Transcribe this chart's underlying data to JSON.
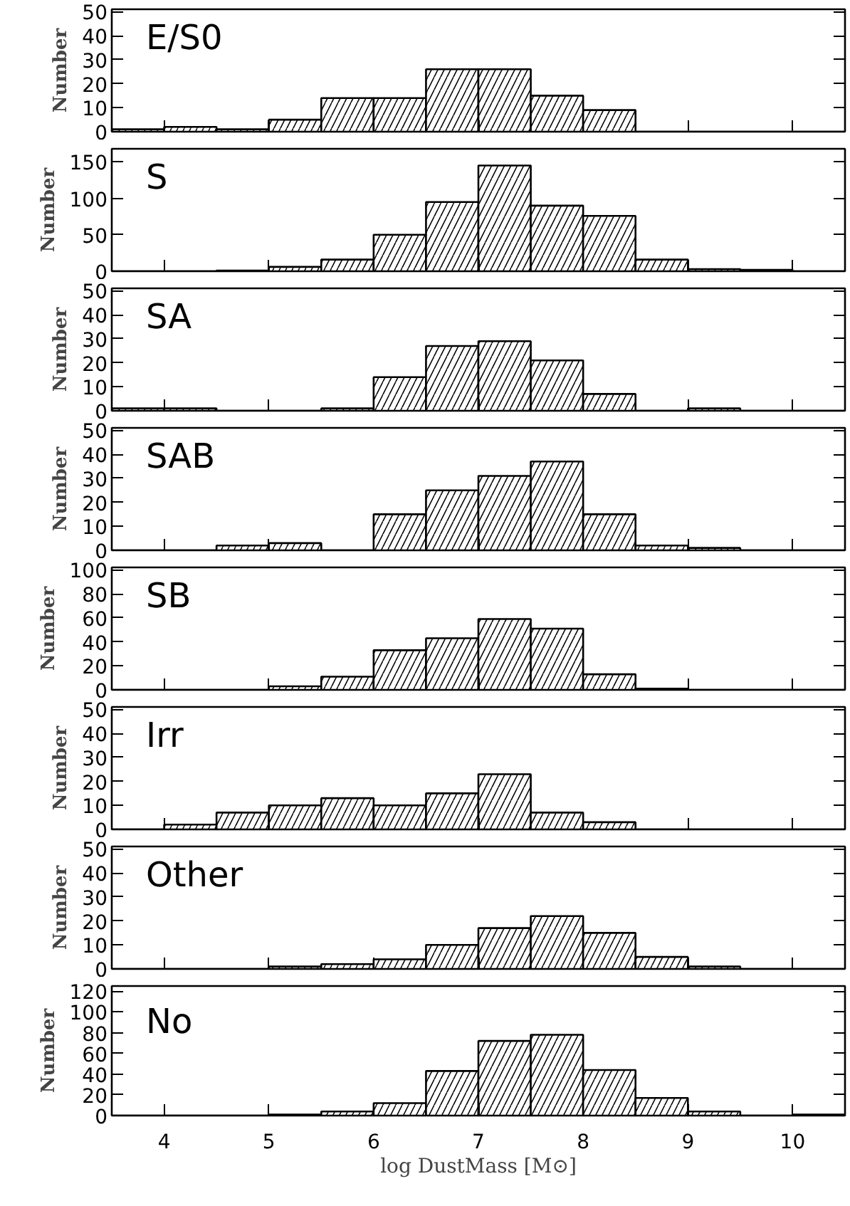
{
  "chart_data": [
    {
      "type": "histogram",
      "title": "E/S0",
      "ylabel": "Number",
      "color": "#000000",
      "bins": [
        3.5,
        4,
        4.5,
        5,
        5.5,
        6,
        6.5,
        7,
        7.5,
        8,
        8.5,
        9,
        9.5,
        10,
        10.5
      ],
      "values": [
        1,
        2,
        1,
        5,
        14,
        14,
        26,
        26,
        15,
        9,
        0,
        0,
        0,
        0
      ],
      "xlim": [
        3.5,
        10.5
      ],
      "xticks": [
        4,
        5,
        6,
        7,
        8,
        9,
        10
      ],
      "ylim": [
        0,
        51
      ],
      "yticks": [
        0,
        10,
        20,
        30,
        40,
        50
      ],
      "tick_labels": "y",
      "grid": false
    },
    {
      "type": "histogram",
      "title": "S",
      "ylabel": "Number",
      "color": "#000000",
      "bins": [
        3.5,
        4,
        4.5,
        5,
        5.5,
        6,
        6.5,
        7,
        7.5,
        8,
        8.5,
        9,
        9.5,
        10,
        10.5
      ],
      "values": [
        0,
        0,
        1,
        6,
        16,
        50,
        95,
        145,
        90,
        76,
        16,
        3,
        2,
        0
      ],
      "xlim": [
        3.5,
        10.5
      ],
      "xticks": [
        4,
        5,
        6,
        7,
        8,
        9,
        10
      ],
      "ylim": [
        0,
        168
      ],
      "yticks": [
        0,
        50,
        100,
        150
      ],
      "tick_labels": "y",
      "grid": false
    },
    {
      "type": "histogram",
      "title": "SA",
      "ylabel": "Number",
      "color": "#000000",
      "bins": [
        3.5,
        4,
        4.5,
        5,
        5.5,
        6,
        6.5,
        7,
        7.5,
        8,
        8.5,
        9,
        9.5,
        10,
        10.5
      ],
      "values": [
        1,
        1,
        0,
        0,
        1,
        14,
        27,
        29,
        21,
        7,
        0,
        1,
        0,
        0
      ],
      "xlim": [
        3.5,
        10.5
      ],
      "xticks": [
        4,
        5,
        6,
        7,
        8,
        9,
        10
      ],
      "ylim": [
        0,
        51
      ],
      "yticks": [
        0,
        10,
        20,
        30,
        40,
        50
      ],
      "tick_labels": "y",
      "grid": false
    },
    {
      "type": "histogram",
      "title": "SAB",
      "ylabel": "Number",
      "color": "#000000",
      "bins": [
        3.5,
        4,
        4.5,
        5,
        5.5,
        6,
        6.5,
        7,
        7.5,
        8,
        8.5,
        9,
        9.5,
        10,
        10.5
      ],
      "values": [
        0,
        0,
        2,
        3,
        0,
        15,
        25,
        31,
        37,
        15,
        2,
        1,
        0,
        0
      ],
      "xlim": [
        3.5,
        10.5
      ],
      "xticks": [
        4,
        5,
        6,
        7,
        8,
        9,
        10
      ],
      "ylim": [
        0,
        51
      ],
      "yticks": [
        0,
        10,
        20,
        30,
        40,
        50
      ],
      "tick_labels": "y",
      "grid": false
    },
    {
      "type": "histogram",
      "title": "SB",
      "ylabel": "Number",
      "color": "#000000",
      "bins": [
        3.5,
        4,
        4.5,
        5,
        5.5,
        6,
        6.5,
        7,
        7.5,
        8,
        8.5,
        9,
        9.5,
        10,
        10.5
      ],
      "values": [
        0,
        0,
        0,
        3,
        11,
        33,
        43,
        59,
        51,
        13,
        1,
        0,
        0,
        0
      ],
      "xlim": [
        3.5,
        10.5
      ],
      "xticks": [
        4,
        5,
        6,
        7,
        8,
        9,
        10
      ],
      "ylim": [
        0,
        102
      ],
      "yticks": [
        0,
        20,
        40,
        60,
        80,
        100
      ],
      "tick_labels": "y",
      "grid": false
    },
    {
      "type": "histogram",
      "title": "Irr",
      "ylabel": "Number",
      "color": "#000000",
      "bins": [
        3.5,
        4,
        4.5,
        5,
        5.5,
        6,
        6.5,
        7,
        7.5,
        8,
        8.5,
        9,
        9.5,
        10,
        10.5
      ],
      "values": [
        0,
        2,
        7,
        10,
        13,
        10,
        15,
        23,
        7,
        3,
        0,
        0,
        0,
        0
      ],
      "xlim": [
        3.5,
        10.5
      ],
      "xticks": [
        4,
        5,
        6,
        7,
        8,
        9,
        10
      ],
      "ylim": [
        0,
        51
      ],
      "yticks": [
        0,
        10,
        20,
        30,
        40,
        50
      ],
      "tick_labels": "y",
      "grid": false
    },
    {
      "type": "histogram",
      "title": "Other",
      "ylabel": "Number",
      "color": "#000000",
      "bins": [
        3.5,
        4,
        4.5,
        5,
        5.5,
        6,
        6.5,
        7,
        7.5,
        8,
        8.5,
        9,
        9.5,
        10,
        10.5
      ],
      "values": [
        0,
        0,
        0,
        1,
        2,
        4,
        10,
        17,
        22,
        15,
        5,
        1,
        0,
        0
      ],
      "xlim": [
        3.5,
        10.5
      ],
      "xticks": [
        4,
        5,
        6,
        7,
        8,
        9,
        10
      ],
      "ylim": [
        0,
        51
      ],
      "yticks": [
        0,
        10,
        20,
        30,
        40,
        50
      ],
      "tick_labels": "y",
      "grid": false
    },
    {
      "type": "histogram",
      "title": "No",
      "ylabel": "Number",
      "xlabel": "log DustMass [M⊙]",
      "color": "#000000",
      "bins": [
        3.5,
        4,
        4.5,
        5,
        5.5,
        6,
        6.5,
        7,
        7.5,
        8,
        8.5,
        9,
        9.5,
        10,
        10.5
      ],
      "values": [
        0,
        0,
        0,
        1,
        4,
        12,
        43,
        72,
        78,
        44,
        17,
        4,
        0,
        1
      ],
      "xlim": [
        3.5,
        10.5
      ],
      "xticks": [
        4,
        5,
        6,
        7,
        8,
        9,
        10
      ],
      "ylim": [
        0,
        125
      ],
      "yticks": [
        0,
        20,
        40,
        60,
        80,
        100,
        120
      ],
      "grid": false
    }
  ]
}
